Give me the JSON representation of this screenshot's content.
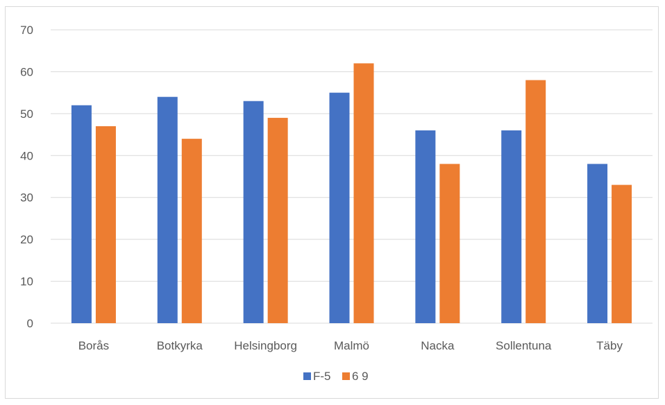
{
  "chart_data": {
    "type": "bar",
    "categories": [
      "Borås",
      "Botkyrka",
      "Helsingborg",
      "Malmö",
      "Nacka",
      "Sollentuna",
      "Täby"
    ],
    "series": [
      {
        "name": "F-5",
        "color": "#4472c4",
        "values": [
          52,
          54,
          53,
          55,
          46,
          46,
          38
        ]
      },
      {
        "name": "6 9",
        "color": "#ed7d31",
        "values": [
          47,
          44,
          49,
          62,
          38,
          58,
          33
        ]
      }
    ],
    "ylim": [
      0,
      70
    ],
    "yticks": [
      "0",
      "10",
      "20",
      "30",
      "40",
      "50",
      "60",
      "70"
    ],
    "grid": true,
    "legend_position": "bottom",
    "gridline_color": "#d9d9d9"
  }
}
